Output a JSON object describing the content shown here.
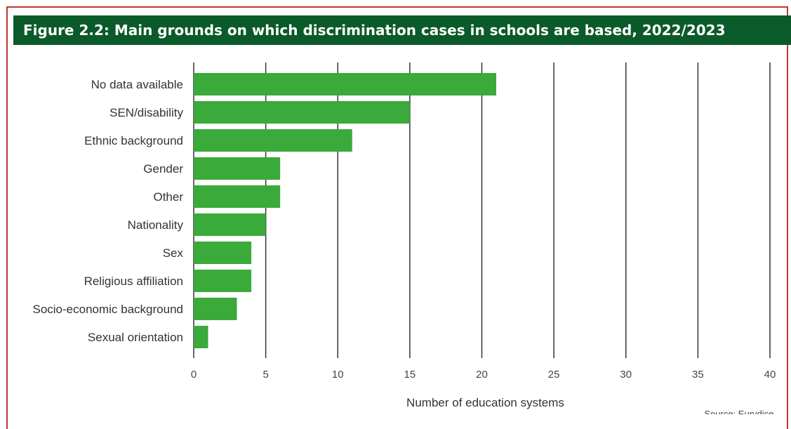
{
  "title": "Figure 2.2: Main grounds on which discrimination cases in schools are based, 2022/2023",
  "source": "Source: Eurydice.",
  "colors": {
    "bar": "#3aaa3a",
    "title_bg": "#0b5a2a",
    "frame": "#c0392b",
    "grid": "#333333"
  },
  "chart_data": {
    "type": "bar",
    "orientation": "horizontal",
    "categories": [
      "No data available",
      "SEN/disability",
      "Ethnic background",
      "Gender",
      "Other",
      "Nationality",
      "Sex",
      "Religious affiliation",
      "Socio-economic background",
      "Sexual orientation"
    ],
    "values": [
      21,
      15,
      11,
      6,
      6,
      5,
      4,
      4,
      3,
      1
    ],
    "xlabel": "Number of education systems",
    "ylabel": "",
    "xlim": [
      0,
      40
    ],
    "xticks": [
      0,
      5,
      10,
      15,
      20,
      25,
      30,
      35,
      40
    ],
    "grid": true
  }
}
